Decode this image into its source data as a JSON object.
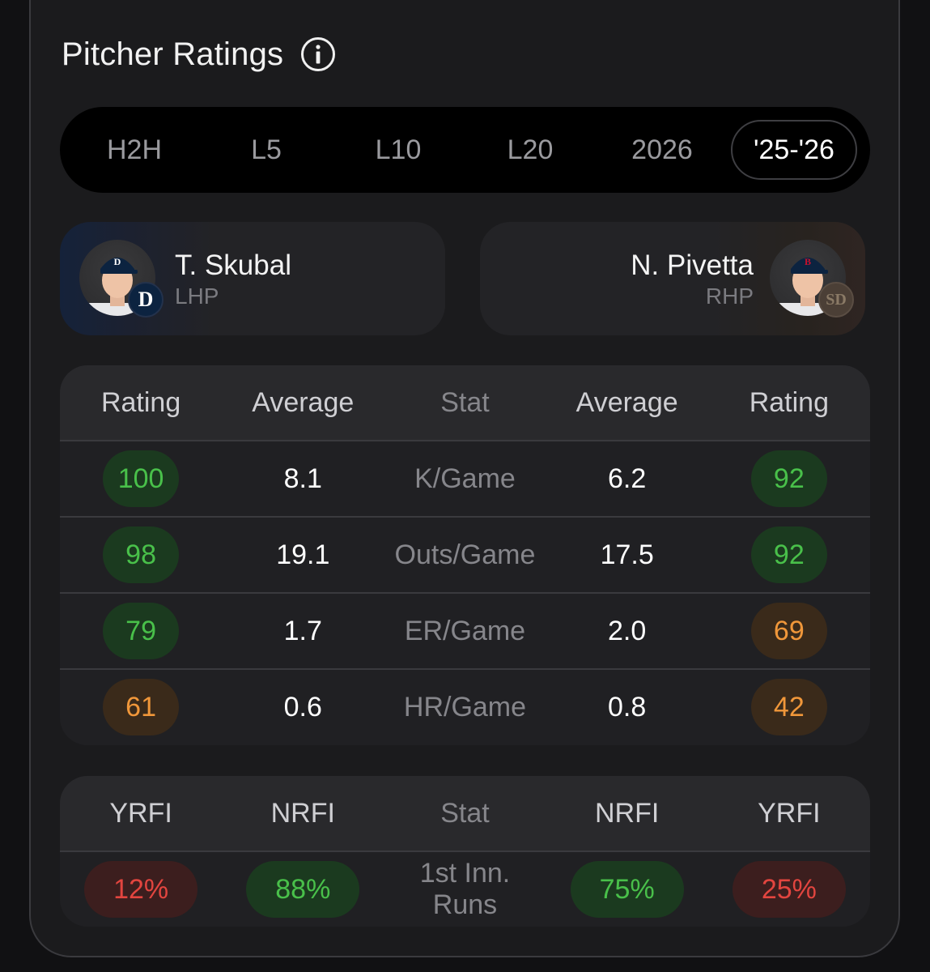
{
  "title": "Pitcher Ratings",
  "tabs": [
    {
      "label": "H2H",
      "active": false
    },
    {
      "label": "L5",
      "active": false
    },
    {
      "label": "L10",
      "active": false
    },
    {
      "label": "L20",
      "active": false
    },
    {
      "label": "2026",
      "active": false
    },
    {
      "label": "'25-'26",
      "active": true
    }
  ],
  "pitchers": {
    "left": {
      "name": "T. Skubal",
      "hand": "LHP",
      "team_logo": "D"
    },
    "right": {
      "name": "N. Pivetta",
      "hand": "RHP",
      "team_logo": "SD"
    }
  },
  "ratings_table": {
    "headers": [
      "Rating",
      "Average",
      "Stat",
      "Average",
      "Rating"
    ],
    "rows": [
      {
        "left_rating": "100",
        "left_avg": "8.1",
        "stat": "K/Game",
        "right_avg": "6.2",
        "right_rating": "92"
      },
      {
        "left_rating": "98",
        "left_avg": "19.1",
        "stat": "Outs/Game",
        "right_avg": "17.5",
        "right_rating": "92"
      },
      {
        "left_rating": "79",
        "left_avg": "1.7",
        "stat": "ER/Game",
        "right_avg": "2.0",
        "right_rating": "69"
      },
      {
        "left_rating": "61",
        "left_avg": "0.6",
        "stat": "HR/Game",
        "right_avg": "0.8",
        "right_rating": "42"
      }
    ]
  },
  "nrfi_table": {
    "headers": [
      "YRFI",
      "NRFI",
      "Stat",
      "NRFI",
      "YRFI"
    ],
    "row": {
      "left_yrfi": "12%",
      "left_nrfi": "88%",
      "stat": "1st Inn. Runs",
      "right_nrfi": "75%",
      "right_yrfi": "25%"
    }
  },
  "colors": {
    "green": "#49c04a",
    "orange": "#f0973a",
    "red": "#e2453f",
    "background": "#1b1b1d"
  },
  "icons": {
    "info": "info-circle-icon"
  }
}
